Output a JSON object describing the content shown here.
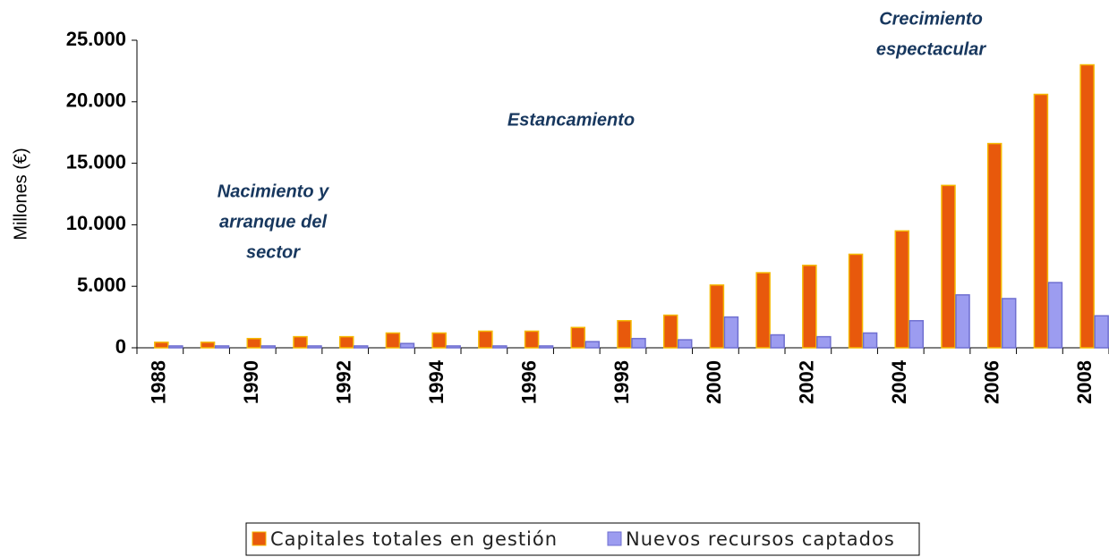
{
  "chart_data": {
    "type": "bar",
    "y_label": "Millones (€)",
    "categories": [
      "1988",
      null,
      "1990",
      null,
      "1992",
      null,
      "1994",
      null,
      "1996",
      null,
      "1998",
      null,
      "2000",
      null,
      "2002",
      null,
      "2004",
      null,
      "2006",
      null,
      "2008"
    ],
    "series": [
      {
        "name": "Capitales totales en gestión",
        "color": "#e8590c",
        "values": [
          450,
          450,
          750,
          900,
          900,
          1200,
          1200,
          1350,
          1350,
          1650,
          2200,
          2650,
          5100,
          6100,
          6700,
          7600,
          9500,
          13200,
          16600,
          20600,
          23000
        ]
      },
      {
        "name": "Nuevos recursos captados",
        "color": "#9c9cf0",
        "values": [
          150,
          150,
          150,
          150,
          150,
          350,
          150,
          150,
          150,
          500,
          750,
          650,
          2500,
          1050,
          900,
          1200,
          2200,
          4300,
          4000,
          5300,
          2600
        ]
      }
    ],
    "ylim": [
      0,
      25000
    ],
    "yticks": [
      0,
      {
        "value": 5000,
        "label": "5.000"
      },
      {
        "value": 10000,
        "label": "10.000"
      },
      {
        "value": 15000,
        "label": "15.000"
      },
      {
        "value": 20000,
        "label": "20.000"
      },
      {
        "value": 25000,
        "label": "25.000"
      }
    ],
    "annotations": [
      {
        "lines": [
          "Nacimiento y",
          "arranque del",
          "sector"
        ]
      },
      {
        "lines": [
          "Estancamiento"
        ]
      },
      {
        "lines": [
          "Crecimiento",
          "espectacular"
        ]
      }
    ]
  }
}
